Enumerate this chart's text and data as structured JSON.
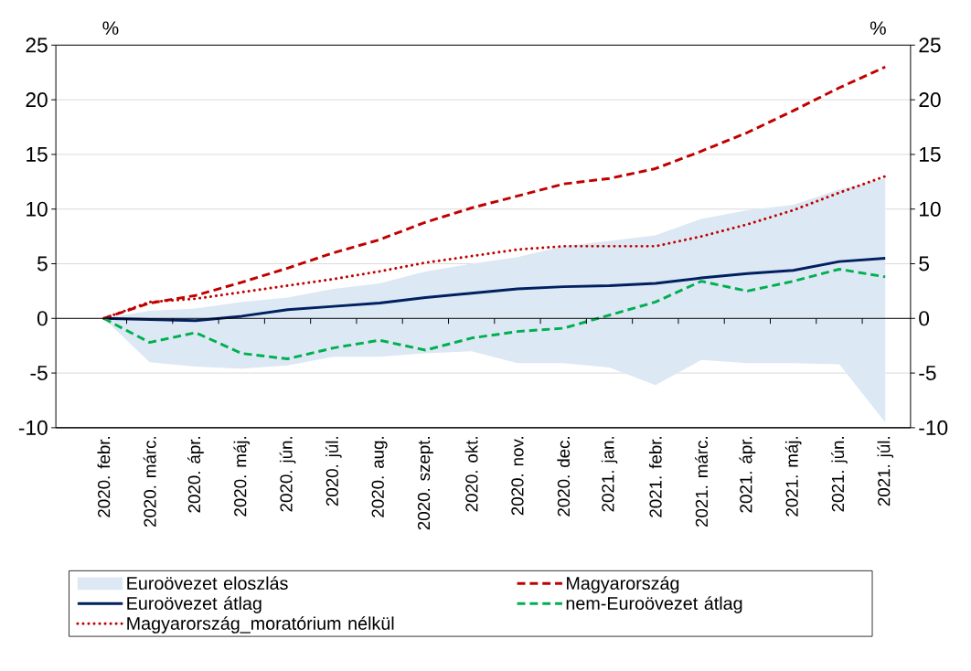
{
  "chart_data": {
    "type": "line",
    "ylabel": "%",
    "y2label": "%",
    "categories": [
      "2020. febr.",
      "2020. márc.",
      "2020. ápr.",
      "2020. máj.",
      "2020. jún.",
      "2020. júl.",
      "2020. aug.",
      "2020. szept.",
      "2020. okt.",
      "2020. nov.",
      "2020. dec.",
      "2021. jan.",
      "2021. febr.",
      "2021. márc.",
      "2021. ápr.",
      "2021. máj.",
      "2021. jún.",
      "2021. júl."
    ],
    "series": [
      {
        "name": "Euroövezet eloszlás",
        "type": "area",
        "color": "#dde8f5",
        "values": [
          null,
          null,
          null,
          null,
          null,
          null,
          null,
          null,
          null,
          null,
          null,
          null,
          null,
          null,
          null,
          null,
          null,
          null
        ],
        "lower": [
          0,
          -4.0,
          -4.4,
          -4.6,
          -4.3,
          -3.5,
          -3.5,
          -3.2,
          -3.0,
          -4.1,
          -4.1,
          -4.5,
          -6.1,
          -3.8,
          -4.1,
          -4.1,
          -4.2,
          -9.5
        ],
        "upper": [
          0,
          0.7,
          0.9,
          1.5,
          1.9,
          2.7,
          3.2,
          4.3,
          5.0,
          5.6,
          6.6,
          7.1,
          7.6,
          9.1,
          9.9,
          10.4,
          11.8,
          12.8
        ]
      },
      {
        "name": "Magyarország",
        "color": "#c00000",
        "line_style": "dashed",
        "values": [
          0,
          1.4,
          2.1,
          3.3,
          4.6,
          6.0,
          7.2,
          8.8,
          10.1,
          11.2,
          12.3,
          12.8,
          13.7,
          15.3,
          17.0,
          19.0,
          21.1,
          23.0
        ]
      },
      {
        "name": "Euroövezet átlag",
        "color": "#002060",
        "line_style": "solid",
        "values": [
          0,
          -0.1,
          -0.2,
          0.2,
          0.8,
          1.1,
          1.4,
          1.9,
          2.3,
          2.7,
          2.9,
          3.0,
          3.2,
          3.7,
          4.1,
          4.4,
          5.2,
          5.5
        ]
      },
      {
        "name": "nem-Euroövezet átlag",
        "color": "#00b050",
        "line_style": "dashed",
        "values": [
          0,
          -2.2,
          -1.3,
          -3.2,
          -3.7,
          -2.7,
          -2.0,
          -2.9,
          -1.8,
          -1.2,
          -0.9,
          0.3,
          1.5,
          3.4,
          2.5,
          3.4,
          4.5,
          3.8
        ]
      },
      {
        "name": "Magyarország_moratórium nélkül",
        "color": "#c00000",
        "line_style": "dotted",
        "values": [
          0,
          1.5,
          1.8,
          2.4,
          3.0,
          3.6,
          4.3,
          5.1,
          5.7,
          6.3,
          6.6,
          6.6,
          6.6,
          7.5,
          8.6,
          9.9,
          11.5,
          13.0
        ]
      }
    ],
    "ylim": [
      -10,
      25
    ],
    "yticks": [
      -10,
      -5,
      0,
      5,
      10,
      15,
      20,
      25
    ],
    "y2lim": [
      -10,
      25
    ],
    "y2ticks": [
      -10,
      -5,
      0,
      5,
      10,
      15,
      20,
      25
    ],
    "grid": "y",
    "legend": "bottom"
  }
}
